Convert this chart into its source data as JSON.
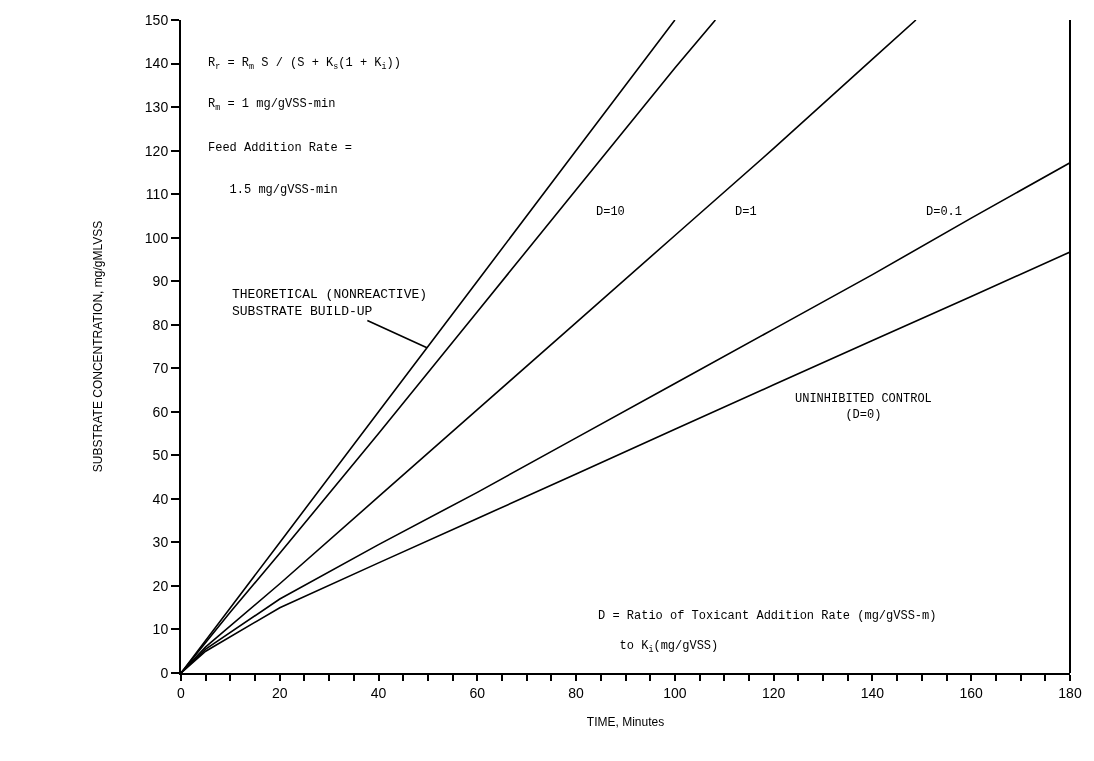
{
  "chart_data": {
    "type": "line",
    "xlabel": "TIME, Minutes",
    "ylabel": "SUBSTRATE CONCENTRATION, mg/gMLVSS",
    "xlim": [
      0,
      180
    ],
    "ylim": [
      0,
      150
    ],
    "xticks": [
      0,
      {
        "value": 5,
        "label": null
      },
      {
        "value": 10,
        "label": null
      },
      {
        "value": 15,
        "label": null
      },
      20,
      {
        "value": 25,
        "label": null
      },
      {
        "value": 30,
        "label": null
      },
      {
        "value": 35,
        "label": null
      },
      40,
      {
        "value": 45,
        "label": null
      },
      {
        "value": 50,
        "label": null
      },
      {
        "value": 55,
        "label": null
      },
      60,
      {
        "value": 65,
        "label": null
      },
      {
        "value": 70,
        "label": null
      },
      {
        "value": 75,
        "label": null
      },
      80,
      {
        "value": 85,
        "label": null
      },
      {
        "value": 90,
        "label": null
      },
      {
        "value": 95,
        "label": null
      },
      100,
      {
        "value": 105,
        "label": null
      },
      {
        "value": 110,
        "label": null
      },
      {
        "value": 115,
        "label": null
      },
      120,
      {
        "value": 125,
        "label": null
      },
      {
        "value": 130,
        "label": null
      },
      {
        "value": 135,
        "label": null
      },
      140,
      {
        "value": 145,
        "label": null
      },
      {
        "value": 150,
        "label": null
      },
      {
        "value": 155,
        "label": null
      },
      160,
      {
        "value": 165,
        "label": null
      },
      {
        "value": 170,
        "label": null
      },
      {
        "value": 175,
        "label": null
      },
      180
    ],
    "yticks": [
      0,
      10,
      20,
      30,
      40,
      50,
      60,
      70,
      80,
      90,
      100,
      110,
      120,
      130,
      140,
      150
    ],
    "legend": false,
    "marker": "none",
    "line_style": "solid",
    "series": [
      {
        "name": "THEORETICAL (NONREACTIVE)\nSUBSTRATE BUILD-UP",
        "color": "#000000",
        "x": [
          0,
          20,
          40,
          60,
          80,
          100
        ],
        "values": [
          0,
          30,
          60,
          90,
          120,
          150
        ]
      },
      {
        "name": "D=10",
        "color": "#000000",
        "x": [
          0,
          10,
          20,
          40,
          60,
          80,
          100,
          108.2
        ],
        "values": [
          0,
          14,
          27.5,
          55,
          83,
          111,
          139,
          150
        ]
      },
      {
        "name": "D=1",
        "color": "#000000",
        "x": [
          0,
          5,
          20,
          40,
          60,
          80,
          100,
          120,
          140,
          148.8
        ],
        "values": [
          0,
          6,
          20.5,
          40.5,
          60.5,
          80.5,
          100.5,
          120.5,
          141,
          150
        ]
      },
      {
        "name": "D=0.1",
        "color": "#000000",
        "x": [
          0,
          5,
          20,
          40,
          60,
          80,
          100,
          120,
          140,
          160,
          180
        ],
        "values": [
          0,
          5.5,
          17,
          29.5,
          41.5,
          54,
          66.5,
          79,
          91.5,
          104.5,
          117.2
        ]
      },
      {
        "name": "UNINHIBITED CONTROL\n(D=0)",
        "color": "#000000",
        "x": [
          0,
          5,
          20,
          40,
          60,
          80,
          100,
          120,
          140,
          160,
          180
        ],
        "values": [
          0,
          5,
          15,
          25.3,
          35.5,
          45.7,
          56,
          66.2,
          76.4,
          86.5,
          96.7
        ]
      }
    ],
    "annotations": [
      "R$_{r}$ = R$_{m}$ S / (S + K$_{s}$(1 + K$_{i}$))",
      "R$_{m}$ = 1 mg/gVSS-min",
      "Feed Addition Rate =",
      "   1.5 mg/gVSS-min",
      "D = Ratio of Toxicant Addition Rate (mg/gVSS-m)",
      "   to K$_{i}$(mg/gVSS)"
    ]
  }
}
